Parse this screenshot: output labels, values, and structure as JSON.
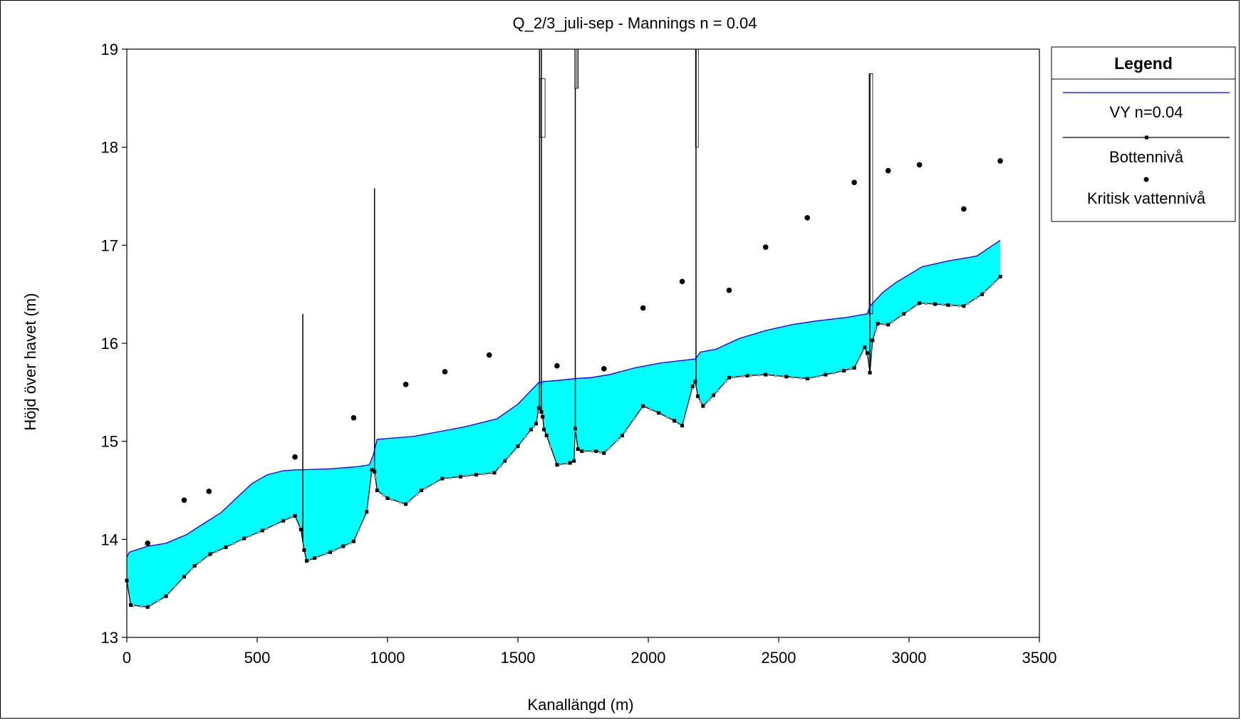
{
  "chart_data": {
    "type": "line",
    "title": "Q_2/3_juli-sep - Mannings n = 0.04",
    "xlabel": "Kanallängd (m)",
    "ylabel": "Höjd över havet (m)",
    "xlim": [
      0,
      3500
    ],
    "ylim": [
      13,
      19
    ],
    "x_ticks": [
      "0",
      "500",
      "1000",
      "1500",
      "2000",
      "2500",
      "3000",
      "3500"
    ],
    "y_ticks": [
      "13",
      "14",
      "15",
      "16",
      "17",
      "18",
      "19"
    ],
    "grid": false,
    "legend": {
      "title": "Legend",
      "placement": "right",
      "entries": [
        "VY n=0.04",
        "Bottennivå",
        "Kritisk vattennivå"
      ]
    },
    "colors": {
      "water_fill": "#00ffff",
      "water_line": "#0000ff",
      "bottom_line": "#000000",
      "critical_points": "#000000",
      "bottom_minor_markers": "#999999"
    },
    "series": [
      {
        "name": "VY n=0.04",
        "x": [
          0,
          10,
          80,
          150,
          230,
          300,
          360,
          420,
          480,
          540,
          600,
          650,
          675,
          780,
          880,
          930,
          945,
          960,
          1100,
          1300,
          1420,
          1500,
          1580,
          1600,
          1650,
          1720,
          1780,
          1850,
          1950,
          2050,
          2180,
          2200,
          2260,
          2350,
          2450,
          2550,
          2650,
          2750,
          2840,
          2850,
          2900,
          2950,
          3050,
          3150,
          3260,
          3350
        ],
        "y": [
          13.82,
          13.87,
          13.93,
          13.96,
          14.05,
          14.17,
          14.27,
          14.42,
          14.57,
          14.66,
          14.7,
          14.71,
          14.71,
          14.72,
          14.74,
          14.76,
          14.86,
          15.02,
          15.05,
          15.15,
          15.23,
          15.38,
          15.6,
          15.61,
          15.62,
          15.64,
          15.65,
          15.68,
          15.75,
          15.8,
          15.84,
          15.91,
          15.94,
          16.05,
          16.13,
          16.19,
          16.23,
          16.26,
          16.3,
          16.38,
          16.52,
          16.62,
          16.78,
          16.84,
          16.89,
          17.05
        ]
      },
      {
        "name": "Bottennivå",
        "x": [
          0,
          15,
          80,
          150,
          220,
          260,
          320,
          380,
          450,
          520,
          600,
          645,
          668,
          680,
          690,
          720,
          780,
          830,
          870,
          920,
          940,
          950,
          960,
          1000,
          1070,
          1130,
          1210,
          1280,
          1340,
          1410,
          1450,
          1500,
          1550,
          1570,
          1580,
          1590,
          1595,
          1600,
          1610,
          1650,
          1700,
          1715,
          1720,
          1730,
          1745,
          1800,
          1830,
          1900,
          1980,
          2040,
          2100,
          2130,
          2170,
          2180,
          2190,
          2210,
          2250,
          2310,
          2380,
          2450,
          2530,
          2610,
          2680,
          2750,
          2790,
          2830,
          2840,
          2850,
          2860,
          2880,
          2920,
          2980,
          3040,
          3100,
          3150,
          3210,
          3280,
          3350
        ],
        "y": [
          13.58,
          13.33,
          13.31,
          13.42,
          13.62,
          13.73,
          13.85,
          13.92,
          14.01,
          14.09,
          14.19,
          14.24,
          14.1,
          13.89,
          13.78,
          13.81,
          13.87,
          13.93,
          13.98,
          14.28,
          14.71,
          14.69,
          14.5,
          14.42,
          14.36,
          14.5,
          14.62,
          14.64,
          14.66,
          14.68,
          14.8,
          14.95,
          15.12,
          15.18,
          15.34,
          15.3,
          15.25,
          15.12,
          15.06,
          14.76,
          14.78,
          14.8,
          15.13,
          14.92,
          14.9,
          14.9,
          14.88,
          15.06,
          15.36,
          15.29,
          15.21,
          15.16,
          15.56,
          15.61,
          15.46,
          15.36,
          15.47,
          15.65,
          15.67,
          15.68,
          15.66,
          15.64,
          15.68,
          15.72,
          15.75,
          15.96,
          15.9,
          15.7,
          16.03,
          16.2,
          16.19,
          16.3,
          16.41,
          16.4,
          16.39,
          16.38,
          16.5,
          16.68
        ]
      },
      {
        "name": "Kritisk vattennivå",
        "x": [
          80,
          220,
          315,
          645,
          870,
          1070,
          1220,
          1390,
          1650,
          1830,
          1980,
          2130,
          2310,
          2450,
          2610,
          2790,
          2920,
          3040,
          3210,
          3350
        ],
        "y": [
          13.96,
          14.4,
          14.49,
          14.84,
          15.24,
          15.58,
          15.71,
          15.88,
          15.77,
          15.74,
          16.36,
          16.63,
          16.54,
          16.98,
          17.28,
          17.64,
          17.76,
          17.82,
          17.37,
          17.86
        ]
      }
    ],
    "structures": [
      {
        "x": 675,
        "top": 16.3
      },
      {
        "x": 950,
        "top": 17.58
      },
      {
        "x": 1583,
        "top": 19.0
      },
      {
        "x": 1590,
        "top": 19.0
      },
      {
        "x": 1720,
        "top": 19.0
      },
      {
        "x": 2183,
        "top": 19.0
      },
      {
        "x": 2850,
        "top": 18.75
      }
    ]
  }
}
